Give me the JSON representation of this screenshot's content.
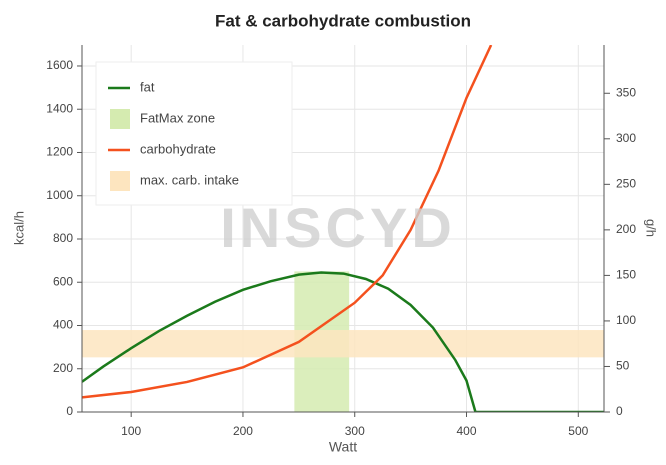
{
  "chart_data": {
    "type": "line",
    "title": "Fat & carbohydrate combustion",
    "x_label": "Watt",
    "y_label": "kcal/h",
    "y2_label": "g/h",
    "watermark": "INSCYD",
    "xlim": [
      56,
      523
    ],
    "xticks": [
      100,
      200,
      300,
      400,
      500
    ],
    "ylim": [
      0,
      1697
    ],
    "yticks": [
      0,
      200,
      400,
      600,
      800,
      1000,
      1200,
      1400,
      1600
    ],
    "y2lim": [
      0,
      403
    ],
    "y2ticks": [
      0,
      50,
      100,
      150,
      200,
      250,
      300,
      350
    ],
    "grid": true,
    "legend": "top-left",
    "series": [
      {
        "name": "fat",
        "color": "#1b7a1b",
        "x": [
          56,
          75,
          100,
          125,
          150,
          175,
          200,
          225,
          250,
          270,
          290,
          310,
          330,
          350,
          370,
          390,
          400,
          408,
          523
        ],
        "values": [
          140,
          210,
          295,
          375,
          445,
          510,
          565,
          605,
          635,
          645,
          640,
          615,
          570,
          495,
          390,
          240,
          145,
          0,
          0
        ]
      },
      {
        "name": "carbohydrate",
        "color": "#f4511e",
        "axis": "y2",
        "x": [
          56,
          100,
          150,
          200,
          250,
          300,
          325,
          350,
          375,
          400,
          422
        ],
        "values": [
          16,
          22,
          33,
          49,
          77,
          120,
          150,
          200,
          265,
          345,
          403
        ]
      }
    ],
    "bands": [
      {
        "name": "FatMax zone",
        "color": "#d5ebb0",
        "x": [
          246,
          295
        ],
        "y": [
          0,
          650
        ]
      },
      {
        "name": "max. carb. intake",
        "color": "#fde5bf",
        "axis": "y2",
        "y": [
          60,
          90
        ]
      }
    ]
  }
}
